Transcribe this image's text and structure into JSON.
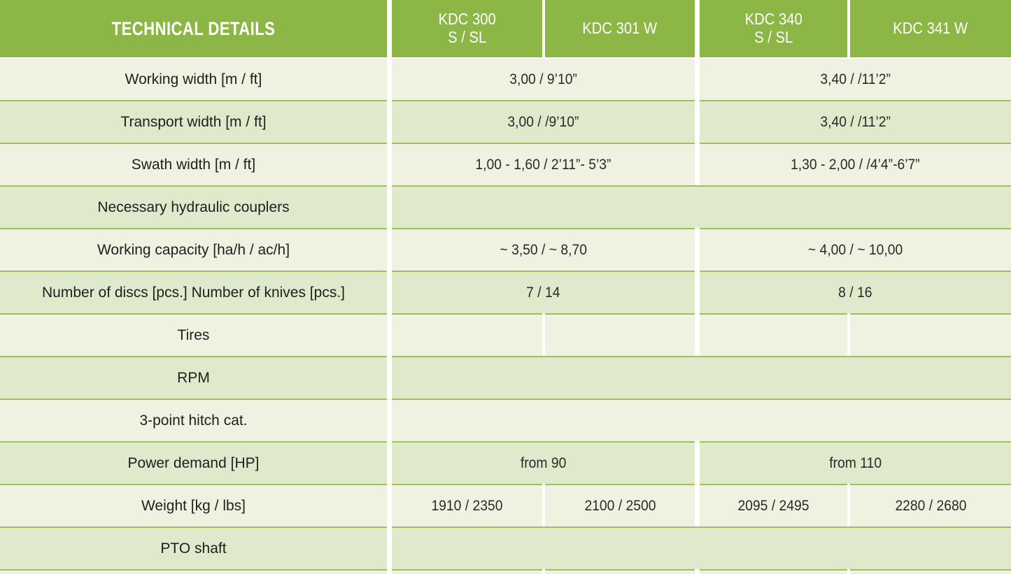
{
  "colors": {
    "header_green": "#8CB645",
    "row_light": "#EFF2E1",
    "row_dark": "#DFE9CC",
    "divider_green": "#9DC153",
    "header_text": "#FFFFFF",
    "body_text": "#2A2A28"
  },
  "table": {
    "title": "TECHNICAL DETAILS",
    "columns": [
      {
        "line1": "KDC 300",
        "line2": "S / SL"
      },
      {
        "line1": "KDC 301 W",
        "line2": ""
      },
      {
        "line1": "KDC 340",
        "line2": "S / SL"
      },
      {
        "line1": "KDC 341 W",
        "line2": ""
      }
    ],
    "rows": [
      {
        "label": "Working width [m / ft]",
        "values": [
          "3,00 / 9’10”",
          "3,40 / /11’2”"
        ]
      },
      {
        "label": "Transport width  [m / ft]",
        "values": [
          "3,00 / /9’10”",
          "3,40 / /11’2”"
        ]
      },
      {
        "label": "Swath width [m / ft]",
        "values": [
          "1,00 - 1,60 / 2’11”- 5’3”",
          "1,30 - 2,00 / /4’4”-6’7”"
        ]
      },
      {
        "label": "Necessary hydraulic couplers",
        "values": [
          ""
        ]
      },
      {
        "label": "Working capacity [ha/h / ac/h]",
        "values": [
          "~ 3,50 / ~ 8,70",
          "~ 4,00 / ~ 10,00"
        ]
      },
      {
        "label": "Number of discs [pcs.] Number of knives [pcs.]",
        "values": [
          "7 / 14",
          "8 / 16"
        ]
      },
      {
        "label": "Tires",
        "values": [
          "",
          "",
          "",
          ""
        ]
      },
      {
        "label": "RPM",
        "values": [
          ""
        ]
      },
      {
        "label": "3-point hitch cat.",
        "values": [
          ""
        ]
      },
      {
        "label": "Power demand [HP]",
        "values": [
          "from 90",
          "from 110"
        ]
      },
      {
        "label": "Weight [kg / lbs]",
        "values": [
          "1910 / 2350",
          "2100 / 2500",
          "2095 / 2495",
          "2280 / 2680"
        ]
      },
      {
        "label": "PTO shaft",
        "values": [
          ""
        ]
      }
    ]
  }
}
